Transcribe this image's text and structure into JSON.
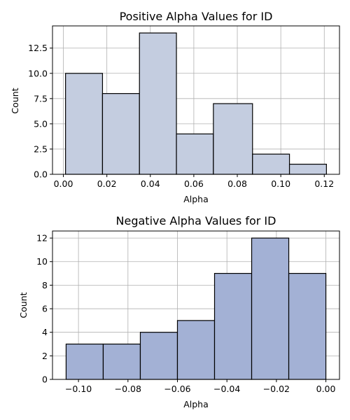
{
  "chart_data": [
    {
      "type": "bar",
      "title": "Positive Alpha Values for ID",
      "xlabel": "Alpha",
      "ylabel": "Count",
      "bin_edges": [
        0.001,
        0.018,
        0.035,
        0.052,
        0.069,
        0.087,
        0.104,
        0.121
      ],
      "values": [
        10,
        8,
        14,
        4,
        7,
        2,
        1
      ],
      "xlim": [
        -0.005,
        0.127
      ],
      "ylim": [
        0,
        14.7
      ],
      "xticks": [
        0.0,
        0.02,
        0.04,
        0.06,
        0.08,
        0.1,
        0.12
      ],
      "xtick_labels": [
        "0.00",
        "0.02",
        "0.04",
        "0.06",
        "0.08",
        "0.10",
        "0.12"
      ],
      "yticks": [
        0,
        2.5,
        5,
        7.5,
        10,
        12.5
      ],
      "ytick_labels": [
        "0.0",
        "2.5",
        "5.0",
        "7.5",
        "10.0",
        "12.5"
      ],
      "grid": true,
      "bar_color": "#c4cde0",
      "edge_color": "#000000"
    },
    {
      "type": "bar",
      "title": "Negative Alpha Values for ID",
      "xlabel": "Alpha",
      "ylabel": "Count",
      "bin_edges": [
        -0.105,
        -0.09,
        -0.075,
        -0.06,
        -0.045,
        -0.03,
        -0.015,
        0.0
      ],
      "values": [
        3,
        3,
        4,
        5,
        9,
        12,
        9
      ],
      "xlim": [
        -0.1105,
        0.0055
      ],
      "ylim": [
        0,
        12.6
      ],
      "xticks": [
        -0.1,
        -0.08,
        -0.06,
        -0.04,
        -0.02,
        0.0
      ],
      "xtick_labels": [
        "−0.10",
        "−0.08",
        "−0.06",
        "−0.04",
        "−0.02",
        "0.00"
      ],
      "yticks": [
        0,
        2,
        4,
        6,
        8,
        10,
        12
      ],
      "ytick_labels": [
        "0",
        "2",
        "4",
        "6",
        "8",
        "10",
        "12"
      ],
      "grid": true,
      "bar_color": "#a3b1d5",
      "edge_color": "#000000"
    }
  ]
}
